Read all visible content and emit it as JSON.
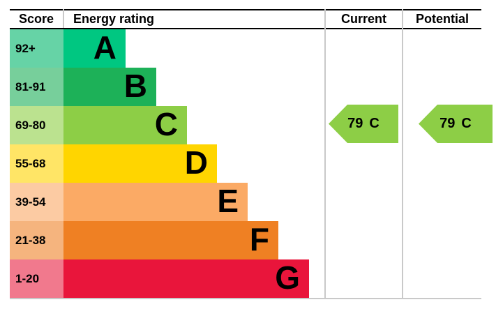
{
  "header": {
    "score_label": "Score",
    "energy_rating_label": "Energy rating",
    "current_label": "Current",
    "potential_label": "Potential"
  },
  "bands": [
    {
      "letter": "A",
      "score": "92+",
      "color": "#00c781",
      "tint": "#66d3a6"
    },
    {
      "letter": "B",
      "score": "81-91",
      "color": "#1db158",
      "tint": "#77cf9b"
    },
    {
      "letter": "C",
      "score": "69-80",
      "color": "#8dce46",
      "tint": "#bbe28f"
    },
    {
      "letter": "D",
      "score": "55-68",
      "color": "#ffd500",
      "tint": "#ffe566"
    },
    {
      "letter": "E",
      "score": "39-54",
      "color": "#fbaa65",
      "tint": "#fccba3"
    },
    {
      "letter": "F",
      "score": "21-38",
      "color": "#ef8023",
      "tint": "#f5b47e"
    },
    {
      "letter": "G",
      "score": "1-20",
      "color": "#e9153b",
      "tint": "#f1798d"
    }
  ],
  "current": {
    "value": "79",
    "letter": "C",
    "color": "#8dce46"
  },
  "potential": {
    "value": "79",
    "letter": "C",
    "color": "#8dce46"
  },
  "border_colors": {
    "rule": "#000000",
    "divider": "#c9c9c9"
  },
  "chart_data": {
    "type": "bar",
    "title": "Energy rating (EPC)",
    "columns": [
      "Score",
      "Energy rating",
      "Current",
      "Potential"
    ],
    "categories": [
      "A",
      "B",
      "C",
      "D",
      "E",
      "F",
      "G"
    ],
    "score_ranges": [
      "92+",
      "81-91",
      "69-80",
      "55-68",
      "39-54",
      "21-38",
      "1-20"
    ],
    "band_colors": [
      "#00c781",
      "#1db158",
      "#8dce46",
      "#ffd500",
      "#fbaa65",
      "#ef8023",
      "#e9153b"
    ],
    "bar_lengths_relative": [
      1,
      1.49,
      1.98,
      2.48,
      2.97,
      3.45,
      3.96
    ],
    "current": {
      "score": 79,
      "rating": "C"
    },
    "potential": {
      "score": 79,
      "rating": "C"
    },
    "legend_position": "none",
    "grid": false
  }
}
